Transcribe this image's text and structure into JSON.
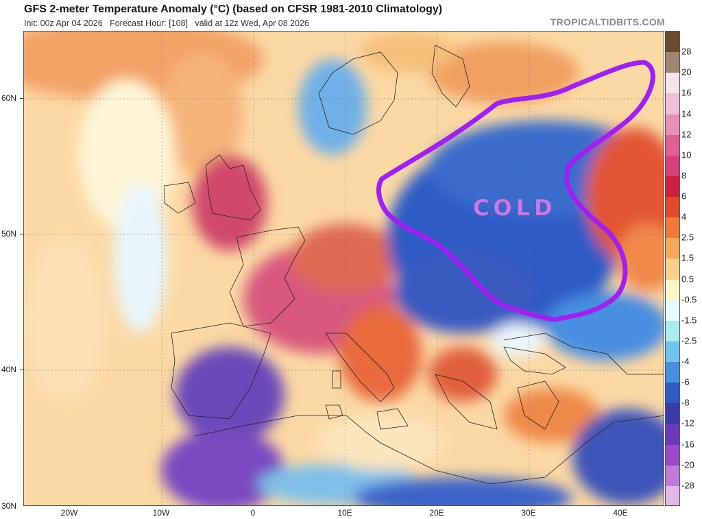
{
  "header": {
    "title": "GFS 2-meter Temperature Anomaly (°C) (based on CFSR 1981-2010 Climatology)",
    "subtitle": "Init: 00z Apr 04 2026   Forecast Hour: [108]   valid at 12z Wed, Apr 08 2026",
    "brand": "TROPICALTIDBITS.COM"
  },
  "map": {
    "lat_labels": [
      "60N",
      "50N",
      "40N",
      "30N"
    ],
    "lon_labels": [
      "20W",
      "10W",
      "0",
      "10E",
      "20E",
      "30E",
      "40E"
    ],
    "annotation": "COLD",
    "annotation_color": "#a020f0"
  },
  "colorbar": {
    "labels": [
      "28",
      "20",
      "16",
      "14",
      "12",
      "10",
      "8",
      "6",
      "4",
      "2.5",
      "1.5",
      "0.5",
      "-0.5",
      "-1.5",
      "-2.5",
      "-4",
      "-6",
      "-8",
      "-12",
      "-16",
      "-20",
      "-28"
    ],
    "colors": [
      "#6b4a2e",
      "#a08670",
      "#f5e4ec",
      "#efc0d4",
      "#e88fb4",
      "#e06094",
      "#d8407a",
      "#cc2040",
      "#e04a2a",
      "#f07a3a",
      "#f6a85a",
      "#fbd08a",
      "#fff4c8",
      "#e4fbfb",
      "#a8ecf2",
      "#70c4ee",
      "#4a8ee0",
      "#2f5cc4",
      "#3a3aa8",
      "#6a3ab8",
      "#9a4ac8",
      "#c07ad8",
      "#e2b8e8"
    ]
  }
}
